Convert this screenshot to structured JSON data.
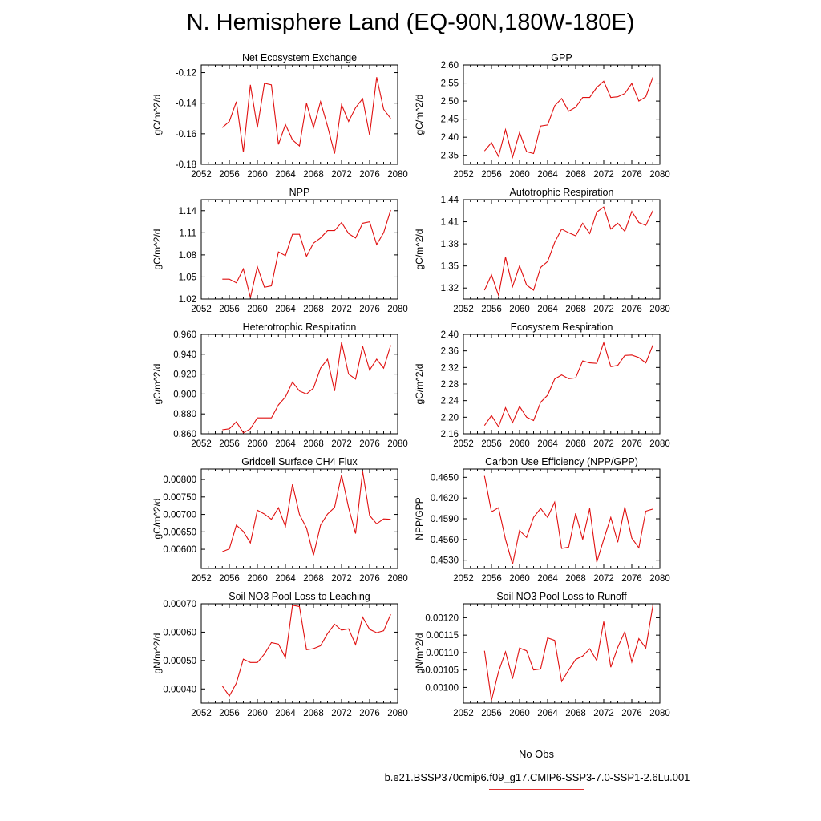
{
  "title": "N. Hemisphere Land (EQ-90N,180W-180E)",
  "legend": [
    {
      "label": "No Obs",
      "color": "#4a4ad0",
      "style": "dashed"
    },
    {
      "label": "b.e21.BSSP370cmip6.f09_g17.CMIP6-SSP3-7.0-SSP1-2.6Lu.001",
      "color": "#e03030",
      "style": "solid"
    }
  ],
  "line_color": "#e01010",
  "chart_data": [
    {
      "type": "line",
      "title": "Net Ecosystem Exchange",
      "ylabel": "gC/m^2/d",
      "xlim": [
        2052,
        2080
      ],
      "xticks": [
        2052,
        2056,
        2060,
        2064,
        2068,
        2072,
        2076,
        2080
      ],
      "ylim": [
        -0.18,
        -0.115
      ],
      "yticks": [
        -0.18,
        -0.16,
        -0.14,
        -0.12
      ],
      "yticklabels": [
        "-0.18",
        "-0.16",
        "-0.14",
        "-0.12"
      ],
      "x": [
        2055,
        2056,
        2057,
        2058,
        2059,
        2060,
        2061,
        2062,
        2063,
        2064,
        2065,
        2066,
        2067,
        2068,
        2069,
        2070,
        2071,
        2072,
        2073,
        2074,
        2075,
        2076,
        2077,
        2078,
        2079
      ],
      "y": [
        -0.156,
        -0.152,
        -0.139,
        -0.172,
        -0.128,
        -0.156,
        -0.127,
        -0.128,
        -0.167,
        -0.154,
        -0.164,
        -0.168,
        -0.14,
        -0.156,
        -0.139,
        -0.155,
        -0.173,
        -0.141,
        -0.152,
        -0.143,
        -0.137,
        -0.161,
        -0.123,
        -0.144,
        -0.15
      ]
    },
    {
      "type": "line",
      "title": "GPP",
      "ylabel": "gC/m^2/d",
      "xlim": [
        2052,
        2080
      ],
      "xticks": [
        2052,
        2056,
        2060,
        2064,
        2068,
        2072,
        2076,
        2080
      ],
      "ylim": [
        2.325,
        2.6
      ],
      "yticks": [
        2.35,
        2.4,
        2.45,
        2.5,
        2.55,
        2.6
      ],
      "yticklabels": [
        "2.35",
        "2.40",
        "2.45",
        "2.50",
        "2.55",
        "2.60"
      ],
      "x": [
        2055,
        2056,
        2057,
        2058,
        2059,
        2060,
        2061,
        2062,
        2063,
        2064,
        2065,
        2066,
        2067,
        2068,
        2069,
        2070,
        2071,
        2072,
        2073,
        2074,
        2075,
        2076,
        2077,
        2078,
        2079
      ],
      "y": [
        2.362,
        2.385,
        2.347,
        2.421,
        2.345,
        2.413,
        2.36,
        2.355,
        2.431,
        2.434,
        2.487,
        2.507,
        2.472,
        2.483,
        2.51,
        2.51,
        2.538,
        2.555,
        2.51,
        2.512,
        2.521,
        2.549,
        2.5,
        2.512,
        2.566
      ]
    },
    {
      "type": "line",
      "title": "NPP",
      "ylabel": "gC/m^2/d",
      "xlim": [
        2052,
        2080
      ],
      "xticks": [
        2052,
        2056,
        2060,
        2064,
        2068,
        2072,
        2076,
        2080
      ],
      "ylim": [
        1.02,
        1.155
      ],
      "yticks": [
        1.02,
        1.05,
        1.08,
        1.11,
        1.14
      ],
      "yticklabels": [
        "1.02",
        "1.05",
        "1.08",
        "1.11",
        "1.14"
      ],
      "x": [
        2055,
        2056,
        2057,
        2058,
        2059,
        2060,
        2061,
        2062,
        2063,
        2064,
        2065,
        2066,
        2067,
        2068,
        2069,
        2070,
        2071,
        2072,
        2073,
        2074,
        2075,
        2076,
        2077,
        2078,
        2079
      ],
      "y": [
        1.047,
        1.047,
        1.042,
        1.061,
        1.022,
        1.064,
        1.036,
        1.038,
        1.084,
        1.079,
        1.108,
        1.108,
        1.078,
        1.096,
        1.103,
        1.113,
        1.113,
        1.124,
        1.109,
        1.103,
        1.123,
        1.125,
        1.094,
        1.11,
        1.141
      ]
    },
    {
      "type": "line",
      "title": "Autotrophic Respiration",
      "ylabel": "gC/m^2/d",
      "xlim": [
        2052,
        2080
      ],
      "xticks": [
        2052,
        2056,
        2060,
        2064,
        2068,
        2072,
        2076,
        2080
      ],
      "ylim": [
        1.305,
        1.44
      ],
      "yticks": [
        1.32,
        1.35,
        1.38,
        1.41,
        1.44
      ],
      "yticklabels": [
        "1.32",
        "1.35",
        "1.38",
        "1.41",
        "1.44"
      ],
      "x": [
        2055,
        2056,
        2057,
        2058,
        2059,
        2060,
        2061,
        2062,
        2063,
        2064,
        2065,
        2066,
        2067,
        2068,
        2069,
        2070,
        2071,
        2072,
        2073,
        2074,
        2075,
        2076,
        2077,
        2078,
        2079
      ],
      "y": [
        1.317,
        1.338,
        1.31,
        1.362,
        1.322,
        1.35,
        1.324,
        1.317,
        1.348,
        1.356,
        1.382,
        1.4,
        1.395,
        1.391,
        1.408,
        1.394,
        1.423,
        1.43,
        1.4,
        1.408,
        1.397,
        1.424,
        1.409,
        1.405,
        1.425
      ]
    },
    {
      "type": "line",
      "title": "Heterotrophic Respiration",
      "ylabel": "gC/m^2/d",
      "xlim": [
        2052,
        2080
      ],
      "xticks": [
        2052,
        2056,
        2060,
        2064,
        2068,
        2072,
        2076,
        2080
      ],
      "ylim": [
        0.86,
        0.96
      ],
      "yticks": [
        0.86,
        0.88,
        0.9,
        0.92,
        0.94,
        0.96
      ],
      "yticklabels": [
        "0.860",
        "0.880",
        "0.900",
        "0.920",
        "0.940",
        "0.960"
      ],
      "x": [
        2055,
        2056,
        2057,
        2058,
        2059,
        2060,
        2061,
        2062,
        2063,
        2064,
        2065,
        2066,
        2067,
        2068,
        2069,
        2070,
        2071,
        2072,
        2073,
        2074,
        2075,
        2076,
        2077,
        2078,
        2079
      ],
      "y": [
        0.864,
        0.865,
        0.872,
        0.861,
        0.865,
        0.876,
        0.876,
        0.876,
        0.889,
        0.897,
        0.912,
        0.903,
        0.9,
        0.906,
        0.926,
        0.935,
        0.903,
        0.952,
        0.92,
        0.915,
        0.948,
        0.924,
        0.935,
        0.926,
        0.949
      ]
    },
    {
      "type": "line",
      "title": "Ecosystem Respiration",
      "ylabel": "gC/m^2/d",
      "xlim": [
        2052,
        2080
      ],
      "xticks": [
        2052,
        2056,
        2060,
        2064,
        2068,
        2072,
        2076,
        2080
      ],
      "ylim": [
        2.16,
        2.4
      ],
      "yticks": [
        2.16,
        2.2,
        2.24,
        2.28,
        2.32,
        2.36,
        2.4
      ],
      "yticklabels": [
        "2.16",
        "2.20",
        "2.24",
        "2.28",
        "2.32",
        "2.36",
        "2.40"
      ],
      "x": [
        2055,
        2056,
        2057,
        2058,
        2059,
        2060,
        2061,
        2062,
        2063,
        2064,
        2065,
        2066,
        2067,
        2068,
        2069,
        2070,
        2071,
        2072,
        2073,
        2074,
        2075,
        2076,
        2077,
        2078,
        2079
      ],
      "y": [
        2.18,
        2.204,
        2.177,
        2.223,
        2.187,
        2.226,
        2.2,
        2.192,
        2.236,
        2.253,
        2.292,
        2.302,
        2.293,
        2.295,
        2.336,
        2.331,
        2.33,
        2.38,
        2.322,
        2.325,
        2.349,
        2.35,
        2.344,
        2.331,
        2.374
      ]
    },
    {
      "type": "line",
      "title": "Gridcell Surface CH4 Flux",
      "ylabel": "gC/m^2/d",
      "xlim": [
        2052,
        2080
      ],
      "xticks": [
        2052,
        2056,
        2060,
        2064,
        2068,
        2072,
        2076,
        2080
      ],
      "ylim": [
        0.00545,
        0.0083
      ],
      "yticks": [
        0.006,
        0.0065,
        0.007,
        0.0075,
        0.008
      ],
      "yticklabels": [
        "0.00600",
        "0.00650",
        "0.00700",
        "0.00750",
        "0.00800"
      ],
      "x": [
        2055,
        2056,
        2057,
        2058,
        2059,
        2060,
        2061,
        2062,
        2063,
        2064,
        2065,
        2066,
        2067,
        2068,
        2069,
        2070,
        2071,
        2072,
        2073,
        2074,
        2075,
        2076,
        2077,
        2078,
        2079
      ],
      "y": [
        0.00593,
        0.00601,
        0.00669,
        0.00651,
        0.00618,
        0.00712,
        0.00701,
        0.00686,
        0.00719,
        0.00665,
        0.00786,
        0.007,
        0.00661,
        0.00583,
        0.00669,
        0.00701,
        0.0072,
        0.00813,
        0.00719,
        0.00645,
        0.00823,
        0.00697,
        0.00673,
        0.00687,
        0.00686
      ]
    },
    {
      "type": "line",
      "title": "Carbon Use Efficiency (NPP/GPP)",
      "ylabel": "NPP/GPP",
      "xlim": [
        2052,
        2080
      ],
      "xticks": [
        2052,
        2056,
        2060,
        2064,
        2068,
        2072,
        2076,
        2080
      ],
      "ylim": [
        0.4518,
        0.4662
      ],
      "yticks": [
        0.453,
        0.456,
        0.459,
        0.462,
        0.465
      ],
      "yticklabels": [
        "0.4530",
        "0.4560",
        "0.4590",
        "0.4620",
        "0.4650"
      ],
      "x": [
        2055,
        2056,
        2057,
        2058,
        2059,
        2060,
        2061,
        2062,
        2063,
        2064,
        2065,
        2066,
        2067,
        2068,
        2069,
        2070,
        2071,
        2072,
        2073,
        2074,
        2075,
        2076,
        2077,
        2078,
        2079
      ],
      "y": [
        0.4652,
        0.46,
        0.4606,
        0.456,
        0.4524,
        0.4573,
        0.4563,
        0.4592,
        0.4605,
        0.4592,
        0.4614,
        0.4547,
        0.4549,
        0.4598,
        0.456,
        0.4605,
        0.4527,
        0.456,
        0.4592,
        0.4556,
        0.4607,
        0.4562,
        0.4548,
        0.4601,
        0.4604
      ]
    },
    {
      "type": "line",
      "title": "Soil NO3 Pool Loss to Leaching",
      "ylabel": "gN/m^2/d",
      "xlim": [
        2052,
        2080
      ],
      "xticks": [
        2052,
        2056,
        2060,
        2064,
        2068,
        2072,
        2076,
        2080
      ],
      "ylim": [
        0.00035,
        0.0007
      ],
      "yticks": [
        0.0004,
        0.0005,
        0.0006,
        0.0007
      ],
      "yticklabels": [
        "0.00040",
        "0.00050",
        "0.00060",
        "0.00070"
      ],
      "x": [
        2055,
        2056,
        2057,
        2058,
        2059,
        2060,
        2061,
        2062,
        2063,
        2064,
        2065,
        2066,
        2067,
        2068,
        2069,
        2070,
        2071,
        2072,
        2073,
        2074,
        2075,
        2076,
        2077,
        2078,
        2079
      ],
      "y": [
        0.00041,
        0.000375,
        0.00042,
        0.000505,
        0.000493,
        0.000493,
        0.000523,
        0.000563,
        0.000558,
        0.00051,
        0.000695,
        0.00069,
        0.000538,
        0.000542,
        0.000552,
        0.000595,
        0.000628,
        0.000607,
        0.000612,
        0.000556,
        0.000653,
        0.00061,
        0.000598,
        0.000605,
        0.000663
      ]
    },
    {
      "type": "line",
      "title": "Soil NO3 Pool Loss to Runoff",
      "ylabel": "gN/m^2/d",
      "xlim": [
        2052,
        2080
      ],
      "xticks": [
        2052,
        2056,
        2060,
        2064,
        2068,
        2072,
        2076,
        2080
      ],
      "ylim": [
        0.000955,
        0.00124
      ],
      "yticks": [
        0.001,
        0.00105,
        0.0011,
        0.00115,
        0.0012
      ],
      "yticklabels": [
        "0.00100",
        "0.00105",
        "0.00110",
        "0.00115",
        "0.00120"
      ],
      "x": [
        2055,
        2056,
        2057,
        2058,
        2059,
        2060,
        2061,
        2062,
        2063,
        2064,
        2065,
        2066,
        2067,
        2068,
        2069,
        2070,
        2071,
        2072,
        2073,
        2074,
        2075,
        2076,
        2077,
        2078,
        2079
      ],
      "y": [
        0.001105,
        0.000963,
        0.001045,
        0.001102,
        0.001025,
        0.001113,
        0.001105,
        0.00105,
        0.001053,
        0.001142,
        0.001135,
        0.001017,
        0.00105,
        0.00108,
        0.00109,
        0.001111,
        0.001077,
        0.001189,
        0.001058,
        0.001115,
        0.00116,
        0.001073,
        0.00114,
        0.001113,
        0.001235
      ]
    }
  ]
}
